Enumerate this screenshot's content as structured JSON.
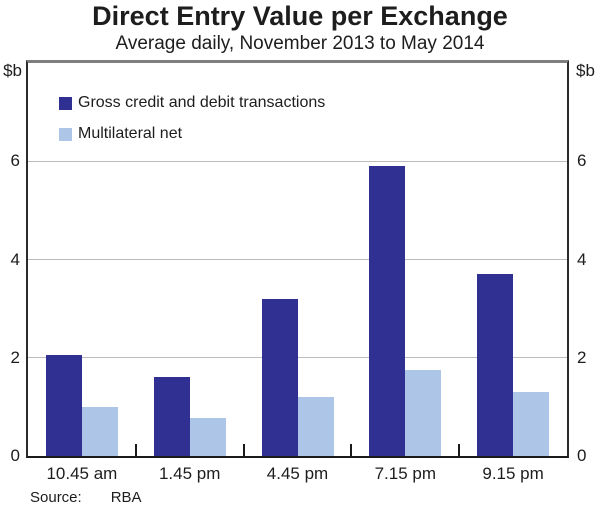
{
  "header": {
    "title": "Direct Entry Value per Exchange",
    "subtitle": "Average daily, November 2013 to May 2014"
  },
  "chart_data": {
    "type": "bar",
    "title": "Direct Entry Value per Exchange",
    "subtitle": "Average daily, November 2013 to May 2014",
    "unit_label": "$b",
    "categories": [
      "10.45 am",
      "1.45 pm",
      "4.45 pm",
      "7.15 pm",
      "9.15 pm"
    ],
    "series": [
      {
        "name": "Gross credit and debit transactions",
        "color": "#2f3092",
        "values": [
          2.05,
          1.6,
          3.2,
          5.9,
          3.7
        ]
      },
      {
        "name": "Multilateral net",
        "color": "#adc6e8",
        "values": [
          1.0,
          0.78,
          1.2,
          1.75,
          1.3
        ]
      }
    ],
    "ylim": [
      0,
      8
    ],
    "y_ticks": [
      0,
      2,
      4,
      6
    ],
    "grid": true,
    "legend_position": "top-left",
    "colors": {
      "grid": "#bcbcbc",
      "axis": "#1a1a1a",
      "top_border": "#7f7f7f"
    }
  },
  "footer": {
    "source_label": "Source:",
    "source_value": "RBA"
  }
}
